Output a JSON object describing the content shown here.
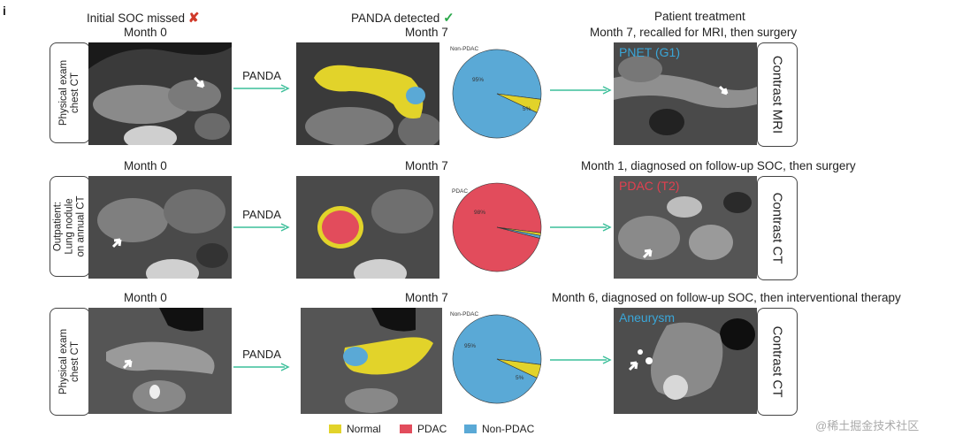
{
  "panel_label": "i",
  "headers": {
    "col1": "Initial SOC missed",
    "col1_mark": "✘",
    "col2": "PANDA detected",
    "col2_mark": "✓",
    "col3_line1": "Patient treatment"
  },
  "colors": {
    "normal": "#e2d32a",
    "pdac": "#e24c5c",
    "non_pdac": "#5aa9d6",
    "arrow": "#3cbf9a",
    "cross": "#d03a2a",
    "check": "#2aa84a"
  },
  "rows": [
    {
      "month_left": "Month 0",
      "month_mid": "Month 7",
      "treatment": "Month 7, recalled for MRI, then surgery",
      "side_left": [
        "Physical exam",
        "chest CT"
      ],
      "side_right": "Contrast MRI",
      "arrow_label": "PANDA",
      "finding": "PNET (G1)",
      "finding_color": "#3aa6d8",
      "pie": {
        "top_label": "Non-PDAC",
        "big_label": "95%",
        "small_label": "5%"
      }
    },
    {
      "month_left": "Month 0",
      "month_mid": "Month 7",
      "treatment": "Month 1, diagnosed on follow-up SOC, then surgery",
      "side_left": [
        "Outpatient:",
        "Lung nodule",
        "on annual CT"
      ],
      "side_right": "Contrast CT",
      "arrow_label": "PANDA",
      "finding": "PDAC (T2)",
      "finding_color": "#e24050",
      "pie": {
        "top_label": "PDAC",
        "big_label": "98%",
        "small_label": ""
      }
    },
    {
      "month_left": "Month 0",
      "month_mid": "Month 7",
      "treatment": "Month 6, diagnosed on follow-up SOC, then interventional therapy",
      "side_left": [
        "Physical exam",
        "chest CT"
      ],
      "side_right": "Contrast CT",
      "arrow_label": "PANDA",
      "finding": "Aneurysm",
      "finding_color": "#3aa6d8",
      "pie": {
        "top_label": "Non-PDAC",
        "big_label": "95%",
        "small_label": "5%"
      }
    }
  ],
  "chart_data": [
    {
      "type": "pie",
      "labels": [
        "Non-PDAC",
        "Normal",
        "PDAC"
      ],
      "values": [
        95,
        5,
        0
      ]
    },
    {
      "type": "pie",
      "labels": [
        "PDAC",
        "Normal",
        "Non-PDAC"
      ],
      "values": [
        98,
        1,
        1
      ]
    },
    {
      "type": "pie",
      "labels": [
        "Non-PDAC",
        "Normal",
        "PDAC"
      ],
      "values": [
        95,
        5,
        0
      ]
    }
  ],
  "legend": [
    {
      "label": "Normal",
      "color": "#e2d32a"
    },
    {
      "label": "PDAC",
      "color": "#e24c5c"
    },
    {
      "label": "Non-PDAC",
      "color": "#5aa9d6"
    }
  ],
  "watermark": "@稀土掘金技术社区"
}
